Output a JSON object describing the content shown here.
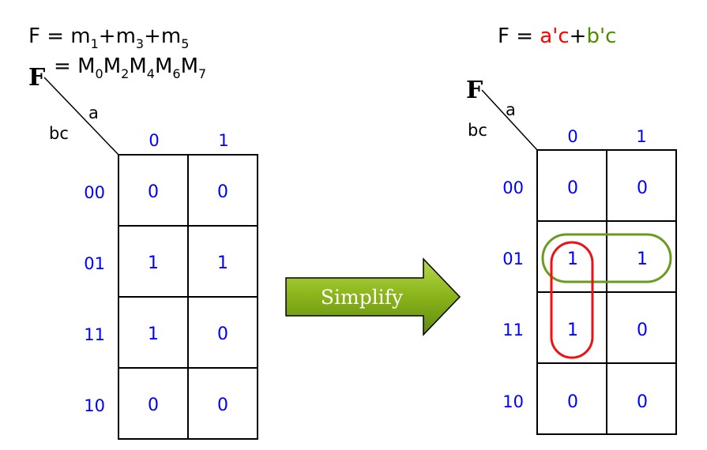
{
  "left": {
    "equation_lhs": "F = m",
    "minterms": [
      {
        "base": "m",
        "sub": "1"
      },
      {
        "base": "m",
        "sub": "3"
      },
      {
        "base": "m",
        "sub": "5"
      }
    ],
    "maxterm_prefix": "= ",
    "maxterms": [
      {
        "base": "M",
        "sub": "0"
      },
      {
        "base": "M",
        "sub": "2"
      },
      {
        "base": "M",
        "sub": "4"
      },
      {
        "base": "M",
        "sub": "6"
      },
      {
        "base": "M",
        "sub": "7"
      }
    ],
    "function_label": "F",
    "var_col": "a",
    "var_row": "bc",
    "col_headers": [
      "0",
      "1"
    ],
    "row_headers": [
      "00",
      "01",
      "11",
      "10"
    ],
    "cells": [
      [
        "0",
        "0"
      ],
      [
        "1",
        "1"
      ],
      [
        "1",
        "0"
      ],
      [
        "0",
        "0"
      ]
    ]
  },
  "arrow": {
    "label": "Simplify",
    "fill": "#8ab31a"
  },
  "right": {
    "equation_prefix": "F = ",
    "term1": "a'c",
    "plus": "+",
    "term2": "b'c",
    "term1_color": "#ff0000",
    "term2_color": "#4d8c00",
    "function_label": "F",
    "var_col": "a",
    "var_row": "bc",
    "col_headers": [
      "0",
      "1"
    ],
    "row_headers": [
      "00",
      "01",
      "11",
      "10"
    ],
    "cells": [
      [
        "0",
        "0"
      ],
      [
        "1",
        "1"
      ],
      [
        "1",
        "0"
      ],
      [
        "0",
        "0"
      ]
    ],
    "groups": [
      {
        "term": "b'c",
        "color": "#6b9a1f",
        "cells": [
          [
            1,
            0
          ],
          [
            1,
            1
          ]
        ]
      },
      {
        "term": "a'c",
        "color": "#ee1111",
        "cells": [
          [
            1,
            0
          ],
          [
            2,
            0
          ]
        ]
      }
    ]
  }
}
